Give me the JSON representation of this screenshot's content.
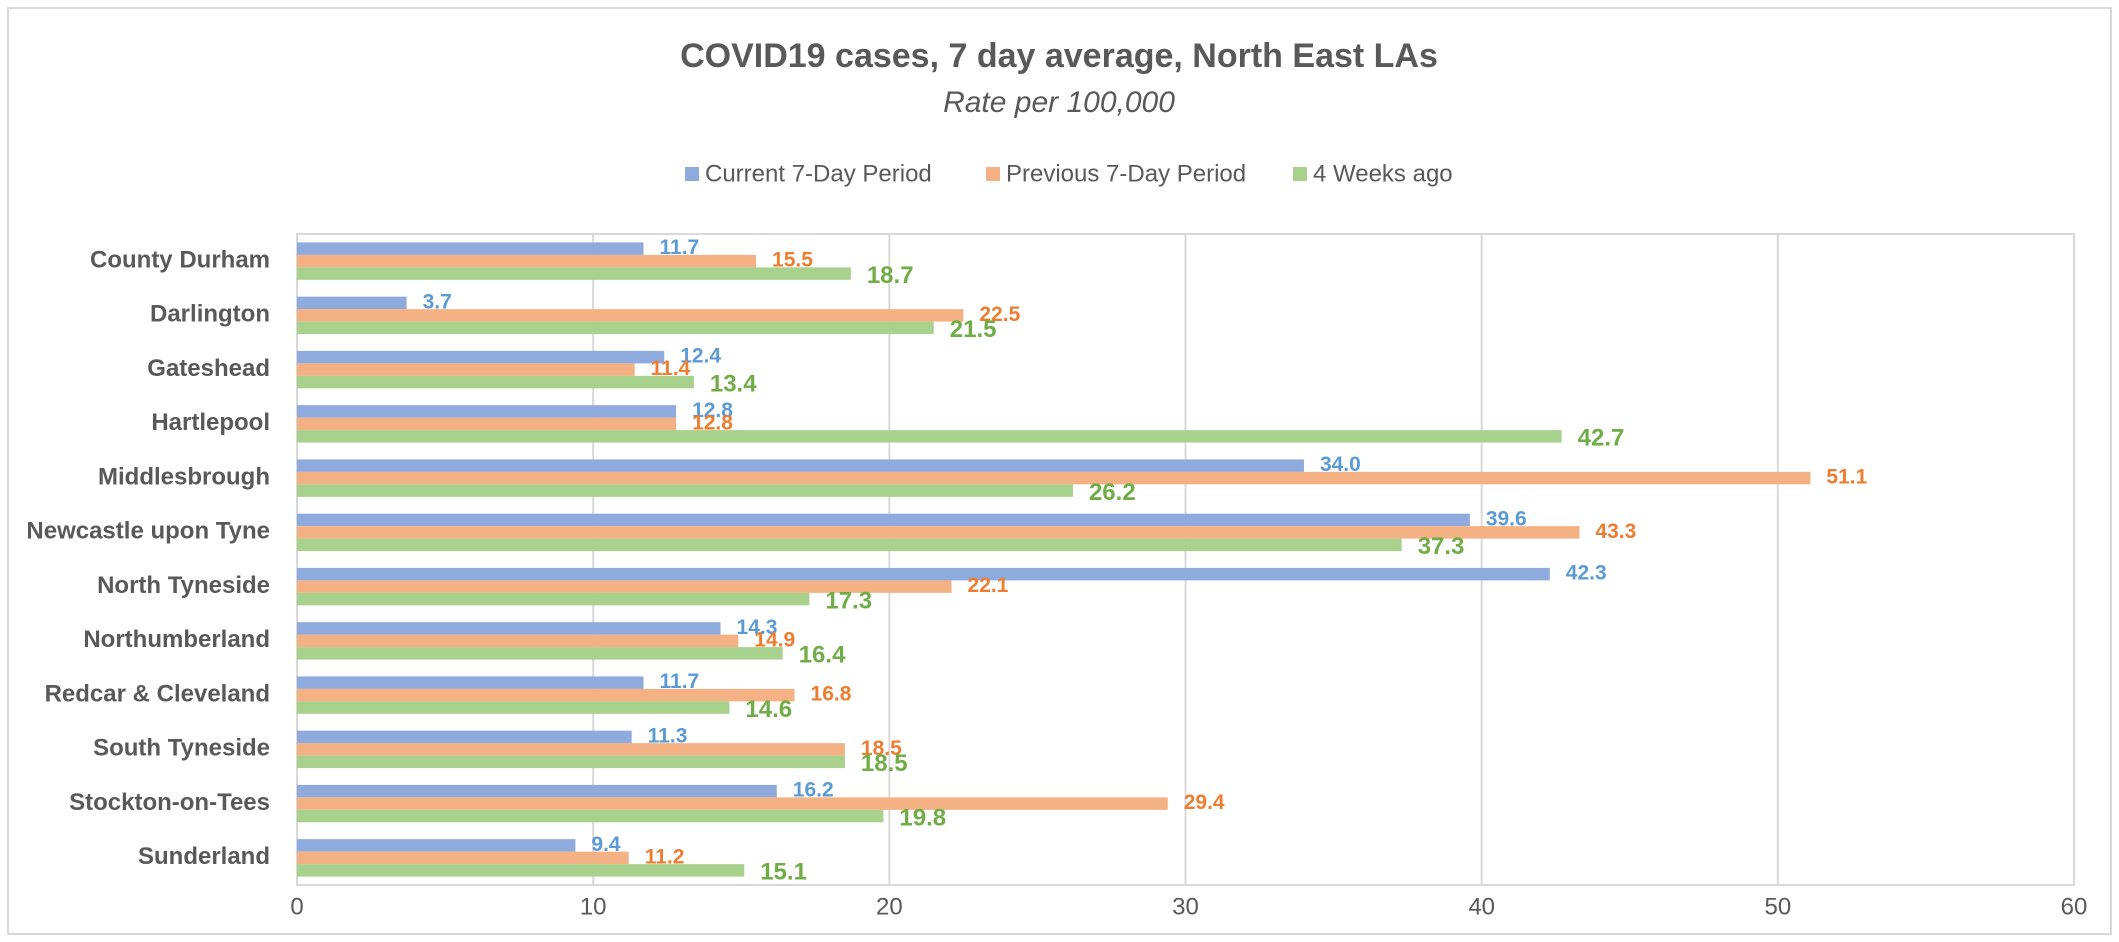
{
  "chart_data": {
    "type": "bar",
    "orientation": "horizontal",
    "title": "COVID19 cases, 7 day average, North East LAs",
    "subtitle": "Rate per 100,000",
    "categories": [
      "County Durham",
      "Darlington",
      "Gateshead",
      "Hartlepool",
      "Middlesbrough",
      "Newcastle upon Tyne",
      "North Tyneside",
      "Northumberland",
      "Redcar & Cleveland",
      "South Tyneside",
      "Stockton-on-Tees",
      "Sunderland"
    ],
    "series": [
      {
        "name": "Current 7-Day Period",
        "color": "#8faadc",
        "label_color": "#5b9bd5",
        "values": [
          11.7,
          3.7,
          12.4,
          12.8,
          34.0,
          39.6,
          42.3,
          14.3,
          11.7,
          11.3,
          16.2,
          9.4
        ],
        "value_labels": [
          "11.7",
          "3.7",
          "12.4",
          "12.8",
          "34.0",
          "39.6",
          "42.3",
          "14.3",
          "11.7",
          "11.3",
          "16.2",
          "9.4"
        ]
      },
      {
        "name": "Previous 7-Day Period",
        "color": "#f4b183",
        "label_color": "#ed7d31",
        "values": [
          15.5,
          22.5,
          11.4,
          12.8,
          51.1,
          43.3,
          22.1,
          14.9,
          16.8,
          18.5,
          29.4,
          11.2
        ],
        "value_labels": [
          "15.5",
          "22.5",
          "11.4",
          "12.8",
          "51.1",
          "43.3",
          "22.1",
          "14.9",
          "16.8",
          "18.5",
          "29.4",
          "11.2"
        ]
      },
      {
        "name": "4 Weeks ago",
        "color": "#a9d18e",
        "label_color": "#70ad47",
        "values": [
          18.7,
          21.5,
          13.4,
          42.7,
          26.2,
          37.3,
          17.3,
          16.4,
          14.6,
          18.5,
          19.8,
          15.1
        ],
        "value_labels": [
          "18.7",
          "21.5",
          "13.4",
          "42.7",
          "26.2",
          "37.3",
          "17.3",
          "16.4",
          "14.6",
          "18.5",
          "19.8",
          "15.1"
        ]
      }
    ],
    "xlim": [
      0,
      60
    ],
    "xticks": [
      0,
      10,
      20,
      30,
      40,
      50,
      60
    ],
    "grid": true,
    "legend": "top"
  }
}
